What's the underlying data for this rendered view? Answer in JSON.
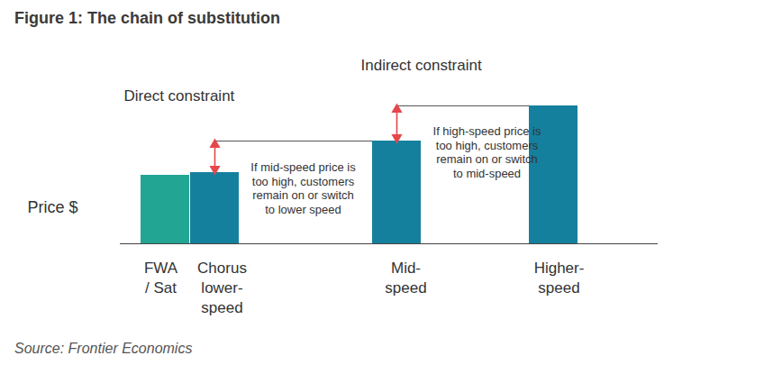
{
  "chart_data": {
    "type": "bar",
    "title": "Figure 1: The chain of substitution",
    "source": "Source: Frontier Economics",
    "ylabel": "Price $",
    "categories": [
      "FWA\n/ Sat",
      "Chorus\nlower-\nspeed",
      "Mid-\nspeed",
      "Higher-\nspeed"
    ],
    "values": [
      76,
      79,
      114,
      153
    ],
    "colors": [
      "#22a592",
      "#15809e",
      "#15809e",
      "#15809e"
    ],
    "ylim": [
      0,
      160
    ],
    "tick_labels": false,
    "annotations": [
      {
        "text": "Direct constraint"
      },
      {
        "text": "Indirect constraint"
      },
      {
        "text": "If mid-speed price is\ntoo high, customers\nremain on or switch\nto lower speed"
      },
      {
        "text": "If high-speed price is\ntoo high, customers\nremain on or switch\nto mid-speed"
      }
    ]
  }
}
